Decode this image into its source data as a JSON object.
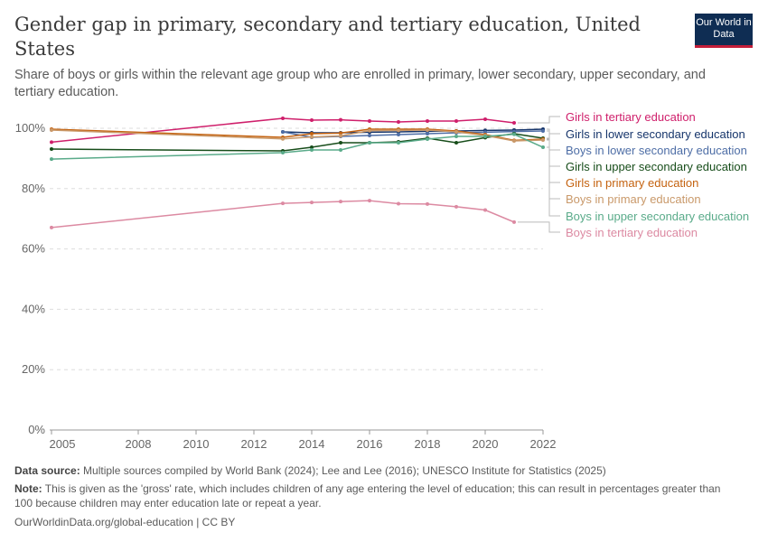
{
  "header": {
    "title": "Gender gap in primary, secondary and tertiary education, United States",
    "subtitle": "Share of boys or girls within the relevant age group who are enrolled in primary, lower secondary, upper secondary, and tertiary education.",
    "logo": "Our World in Data"
  },
  "chart_data": {
    "type": "line",
    "xlim": [
      2005,
      2022
    ],
    "ylim": [
      0,
      104
    ],
    "x_ticks": [
      "2005",
      "2008",
      "2010",
      "2012",
      "2014",
      "2016",
      "2018",
      "2020",
      "2022"
    ],
    "y_ticks": [
      "0%",
      "20%",
      "40%",
      "60%",
      "80%",
      "100%"
    ],
    "grid": "horizontal dashed",
    "legend": "right (line labels)",
    "series": [
      {
        "name": "Girls in tertiary education",
        "color": "#cf1f6b",
        "x": [
          2005,
          2013,
          2014,
          2015,
          2016,
          2017,
          2018,
          2019,
          2020,
          2021
        ],
        "y": [
          95.4,
          103.3,
          102.7,
          102.8,
          102.4,
          102.1,
          102.4,
          102.4,
          103,
          101.8
        ]
      },
      {
        "name": "Girls in lower secondary education",
        "color": "#16356b",
        "x": [
          2013,
          2014,
          2015,
          2016,
          2017,
          2018,
          2019,
          2020,
          2021,
          2022
        ],
        "y": [
          98.8,
          98.5,
          98.5,
          98.7,
          98.8,
          99,
          99.1,
          99.3,
          99.4,
          99.7
        ]
      },
      {
        "name": "Boys in lower secondary education",
        "color": "#4e6ea6",
        "x": [
          2013,
          2014,
          2015,
          2016,
          2017,
          2018,
          2019,
          2020,
          2021,
          2022
        ],
        "y": [
          98.8,
          97,
          97.3,
          97.6,
          97.9,
          98.2,
          98.5,
          98.7,
          98.9,
          99.1
        ]
      },
      {
        "name": "Girls in upper secondary education",
        "color": "#174d1a",
        "x": [
          2005,
          2013,
          2014,
          2015,
          2016,
          2017,
          2018,
          2019,
          2020,
          2021,
          2022
        ],
        "y": [
          93.1,
          92.5,
          93.7,
          95.2,
          95.2,
          95.5,
          96.7,
          95.2,
          96.9,
          98.2,
          96.7
        ]
      },
      {
        "name": "Girls in primary education",
        "color": "#c4620f",
        "x": [
          2005,
          2013,
          2014,
          2015,
          2016,
          2017,
          2018,
          2019,
          2020,
          2021,
          2022
        ],
        "y": [
          99.7,
          97,
          98.2,
          98.4,
          99.7,
          99.7,
          99.7,
          99.1,
          97.9,
          96,
          96.4
        ]
      },
      {
        "name": "Boys in primary education",
        "color": "#c9996a",
        "x": [
          2005,
          2013,
          2014,
          2015,
          2016,
          2017,
          2018,
          2019,
          2020,
          2021,
          2022
        ],
        "y": [
          99.4,
          96.5,
          97.1,
          97.5,
          99.2,
          99.3,
          99.4,
          98.8,
          97.6,
          95.8,
          96.1
        ]
      },
      {
        "name": "Boys in upper secondary education",
        "color": "#5aab8a",
        "x": [
          2005,
          2013,
          2014,
          2015,
          2016,
          2017,
          2018,
          2019,
          2020,
          2021,
          2022
        ],
        "y": [
          89.8,
          91.9,
          92.8,
          92.8,
          95.2,
          95.2,
          96.4,
          97.3,
          97.3,
          98,
          93.7
        ]
      },
      {
        "name": "Boys in tertiary education",
        "color": "#dc8aa2",
        "x": [
          2005,
          2013,
          2014,
          2015,
          2016,
          2017,
          2018,
          2019,
          2020,
          2021
        ],
        "y": [
          67.1,
          75.1,
          75.4,
          75.7,
          76,
          75,
          74.9,
          74,
          72.9,
          68.9
        ]
      }
    ]
  },
  "footer": {
    "source_label": "Data source:",
    "source": "Multiple sources compiled by World Bank (2024); Lee and Lee (2016); UNESCO Institute for Statistics (2025)",
    "note_label": "Note:",
    "note": "This is given as the 'gross' rate, which includes children of any age entering the level of education; this can result in percentages greater than 100 because children may enter education late or repeat a year.",
    "url": "OurWorldinData.org/global-education | CC BY"
  }
}
